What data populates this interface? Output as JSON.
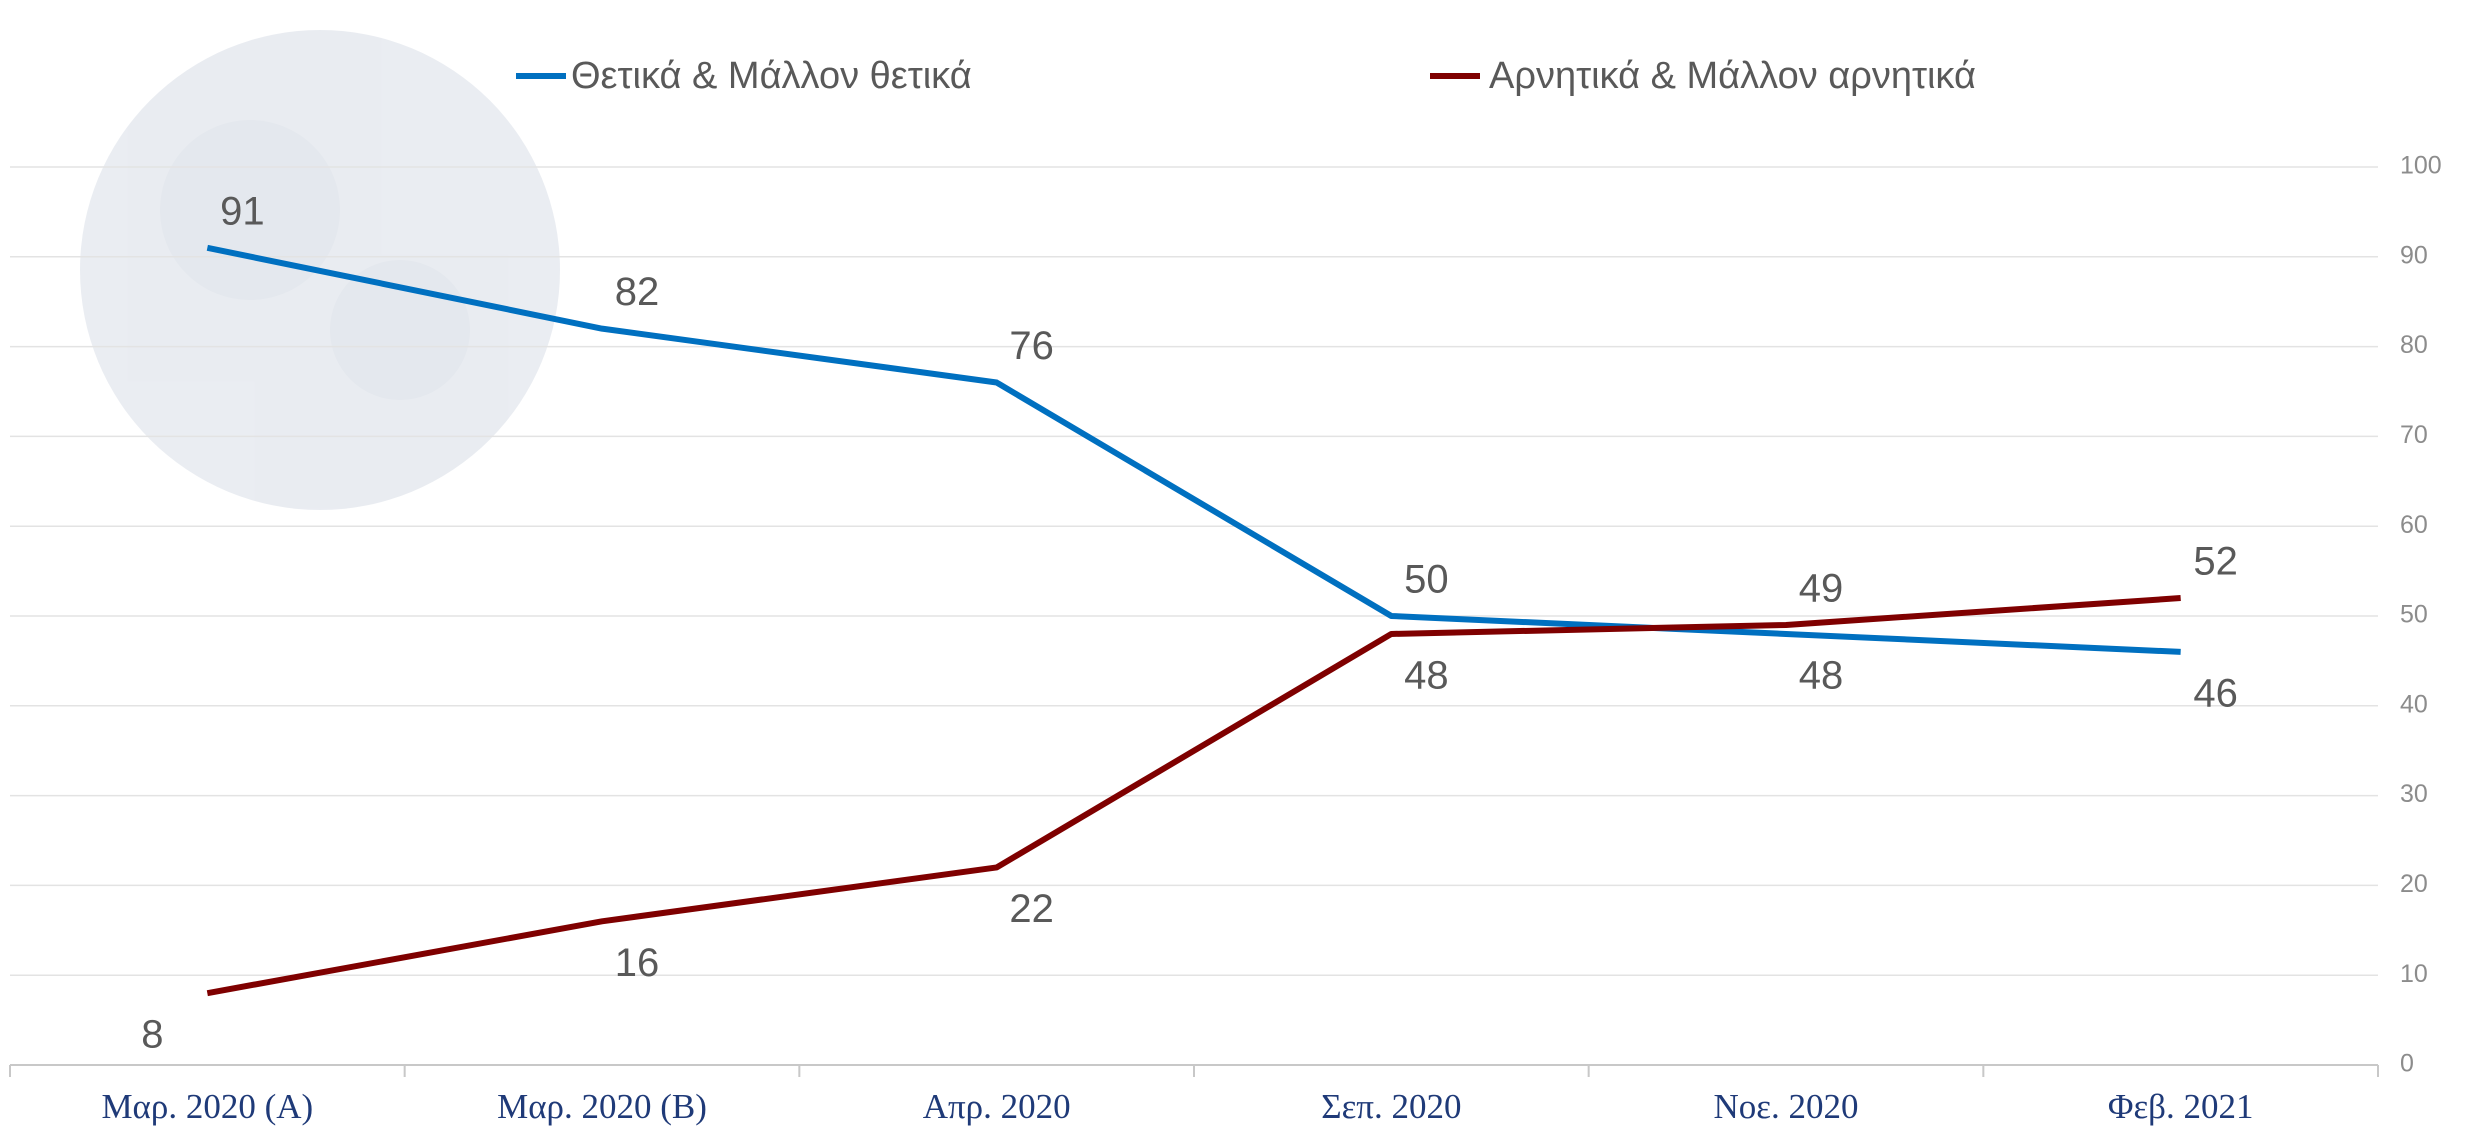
{
  "chart_data": {
    "type": "line",
    "categories": [
      "Μαρ. 2020 (Α)",
      "Μαρ. 2020 (Β)",
      "Απρ. 2020",
      "Σεπ. 2020",
      "Νοε. 2020",
      "Φεβ. 2021"
    ],
    "series": [
      {
        "name": "Θετικά & Μάλλον θετικά",
        "color": "#0070c0",
        "values": [
          91,
          82,
          76,
          50,
          48,
          46
        ]
      },
      {
        "name": "Αρνητικά & Μάλλον αρνητικά",
        "color": "#7f0000",
        "values": [
          8,
          16,
          22,
          48,
          49,
          52
        ]
      }
    ],
    "ylim": [
      0,
      100
    ],
    "yticks": [
      0,
      10,
      20,
      30,
      40,
      50,
      60,
      70,
      80,
      90,
      100
    ],
    "grid": true
  }
}
